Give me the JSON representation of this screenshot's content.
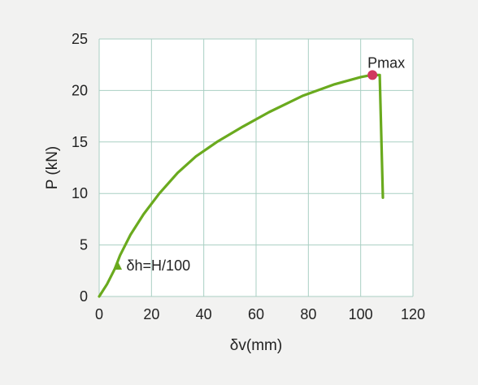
{
  "chart_data": {
    "type": "line",
    "xlabel": "δv(mm)",
    "ylabel": "P (kN)",
    "xlim": [
      0,
      120
    ],
    "ylim": [
      0,
      25
    ],
    "x_ticks": [
      0,
      20,
      40,
      60,
      80,
      100,
      120
    ],
    "y_ticks": [
      0,
      5,
      10,
      15,
      20,
      25
    ],
    "x_tick_labels": [
      "0",
      "20",
      "40",
      "60",
      "80",
      "100",
      "120"
    ],
    "y_tick_labels": [
      "0",
      "5",
      "10",
      "15",
      "20",
      "25"
    ],
    "grid": true,
    "series": [
      {
        "x": [
          0,
          3,
          6,
          8,
          12,
          17,
          23,
          30,
          37,
          45,
          55,
          65,
          78,
          90,
          100,
          104,
          106,
          107,
          107.3,
          108.5
        ],
        "y": [
          0,
          1.2,
          2.7,
          4.0,
          6.0,
          8.0,
          10.0,
          12.0,
          13.6,
          15.0,
          16.5,
          17.9,
          19.5,
          20.6,
          21.3,
          21.5,
          21.5,
          21.5,
          21.5,
          9.6
        ]
      }
    ],
    "annotations": [
      {
        "label": "Pmax",
        "x": 104.5,
        "y": 21.5,
        "marker": "dot"
      },
      {
        "label": "δh=H/100",
        "x": 7,
        "y": 3.0,
        "marker": "triangle"
      }
    ],
    "colors": {
      "line": "#6aaa1e",
      "pmax_marker": "#d1365f",
      "grid": "#a9cfc3",
      "background": "#f2f2f1",
      "plot_background": "#ffffff"
    }
  }
}
